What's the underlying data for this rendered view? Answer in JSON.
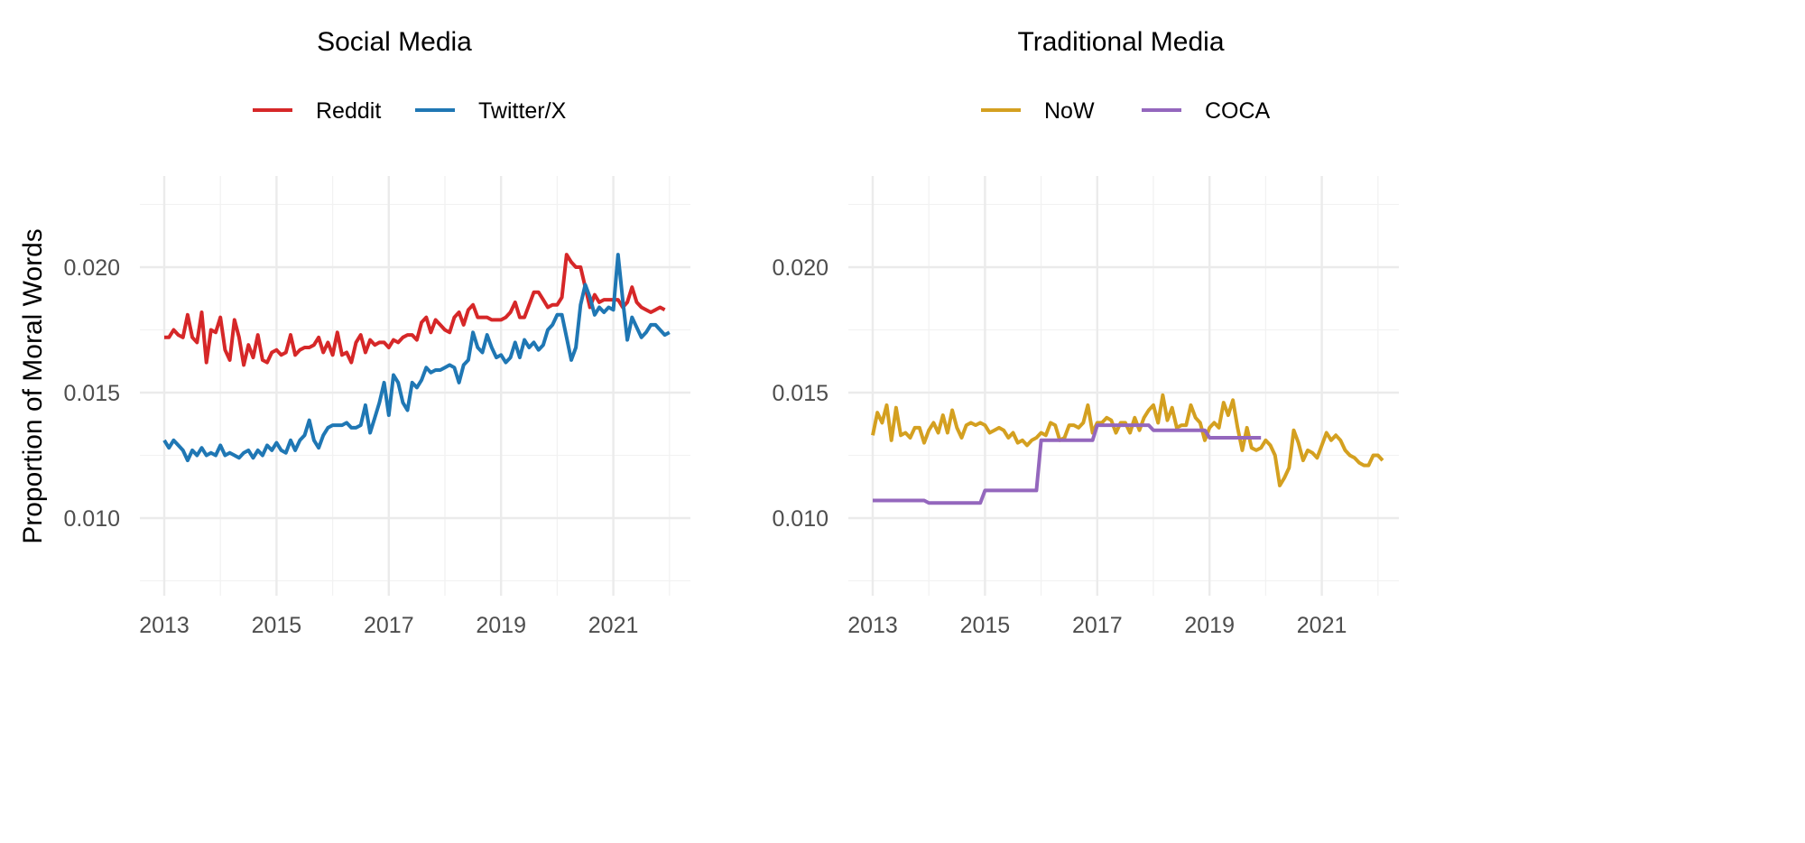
{
  "chart_data": [
    {
      "type": "line",
      "title": "Social Media",
      "xlabel": "",
      "ylabel": "Proportion of Moral Words",
      "xlim": [
        2012.57,
        2022.37
      ],
      "ylim": [
        0.0069,
        0.0236
      ],
      "x_ticks": [
        "2013",
        "2015",
        "2017",
        "2019",
        "2021"
      ],
      "y_ticks": [
        "0.010",
        "0.015",
        "0.020"
      ],
      "grid": true,
      "legend_position": "top",
      "x_start": 2013,
      "x_step_months": 1,
      "series": [
        {
          "name": "Reddit",
          "color": "#d62728",
          "values": [
            0.0172,
            0.0172,
            0.0175,
            0.0173,
            0.0172,
            0.0181,
            0.0172,
            0.017,
            0.0182,
            0.0162,
            0.0175,
            0.0174,
            0.018,
            0.0167,
            0.0163,
            0.0179,
            0.0172,
            0.0161,
            0.0169,
            0.0164,
            0.0173,
            0.0163,
            0.0162,
            0.0166,
            0.0167,
            0.0165,
            0.0166,
            0.0173,
            0.0165,
            0.0167,
            0.0168,
            0.0168,
            0.0169,
            0.0172,
            0.0166,
            0.017,
            0.0165,
            0.0174,
            0.0165,
            0.0166,
            0.0162,
            0.017,
            0.0173,
            0.0166,
            0.0171,
            0.0169,
            0.017,
            0.017,
            0.0168,
            0.0171,
            0.017,
            0.0172,
            0.0173,
            0.0173,
            0.0171,
            0.0178,
            0.018,
            0.0174,
            0.0179,
            0.0177,
            0.0175,
            0.0174,
            0.018,
            0.0182,
            0.0177,
            0.0183,
            0.0185,
            0.018,
            0.018,
            0.018,
            0.0179,
            0.0179,
            0.0179,
            0.018,
            0.0182,
            0.0186,
            0.018,
            0.018,
            0.0185,
            0.019,
            0.019,
            0.0187,
            0.0184,
            0.0185,
            0.0185,
            0.0188,
            0.0205,
            0.0202,
            0.02,
            0.02,
            0.0192,
            0.0184,
            0.0189,
            0.0186,
            0.0187,
            0.0187,
            0.0187,
            0.0187,
            0.0184,
            0.0186,
            0.0192,
            0.0186,
            0.0184,
            0.0183,
            0.0182,
            0.0183,
            0.0184,
            0.0183
          ]
        },
        {
          "name": "Twitter/X",
          "color": "#1f77b4",
          "values": [
            0.0131,
            0.0128,
            0.0131,
            0.0129,
            0.0127,
            0.0123,
            0.0127,
            0.0125,
            0.0128,
            0.0125,
            0.0126,
            0.0125,
            0.0129,
            0.0125,
            0.0126,
            0.0125,
            0.0124,
            0.0126,
            0.0127,
            0.0124,
            0.0127,
            0.0125,
            0.0129,
            0.0127,
            0.013,
            0.0127,
            0.0126,
            0.0131,
            0.0127,
            0.0131,
            0.0133,
            0.0139,
            0.0131,
            0.0128,
            0.0133,
            0.0136,
            0.0137,
            0.0137,
            0.0137,
            0.0138,
            0.0136,
            0.0136,
            0.0137,
            0.0145,
            0.0134,
            0.014,
            0.0146,
            0.0154,
            0.0141,
            0.0157,
            0.0154,
            0.0146,
            0.0143,
            0.0154,
            0.0152,
            0.0155,
            0.016,
            0.0158,
            0.0159,
            0.0159,
            0.016,
            0.0161,
            0.016,
            0.0154,
            0.0161,
            0.0163,
            0.0174,
            0.0168,
            0.0166,
            0.0173,
            0.0168,
            0.0164,
            0.0165,
            0.0162,
            0.0164,
            0.017,
            0.0164,
            0.0171,
            0.0168,
            0.017,
            0.0167,
            0.0169,
            0.0175,
            0.0177,
            0.0181,
            0.0181,
            0.0172,
            0.0163,
            0.0168,
            0.0185,
            0.0193,
            0.0188,
            0.0181,
            0.0184,
            0.0182,
            0.0184,
            0.0183,
            0.0205,
            0.0187,
            0.0171,
            0.018,
            0.0176,
            0.0172,
            0.0174,
            0.0177,
            0.0177,
            0.0175,
            0.0173,
            0.0174
          ]
        }
      ]
    },
    {
      "type": "line",
      "title": "Traditional Media",
      "xlabel": "",
      "ylabel": "",
      "xlim": [
        2012.57,
        2022.37
      ],
      "ylim": [
        0.0069,
        0.0236
      ],
      "x_ticks": [
        "2013",
        "2015",
        "2017",
        "2019",
        "2021"
      ],
      "y_ticks": [
        "0.010",
        "0.015",
        "0.020"
      ],
      "grid": true,
      "legend_position": "top",
      "x_start": 2013,
      "x_step_months": 1,
      "series": [
        {
          "name": "NoW",
          "color": "#d4a020",
          "values": [
            0.0133,
            0.0142,
            0.0138,
            0.0145,
            0.0131,
            0.0144,
            0.0133,
            0.0134,
            0.0132,
            0.0136,
            0.0136,
            0.013,
            0.0135,
            0.0138,
            0.0134,
            0.0141,
            0.0134,
            0.0143,
            0.0136,
            0.0132,
            0.0137,
            0.0138,
            0.0137,
            0.0138,
            0.0137,
            0.0134,
            0.0135,
            0.0136,
            0.0135,
            0.0132,
            0.0134,
            0.013,
            0.0131,
            0.0129,
            0.0131,
            0.0132,
            0.0134,
            0.0133,
            0.0138,
            0.0137,
            0.0131,
            0.0132,
            0.0137,
            0.0137,
            0.0136,
            0.0138,
            0.0145,
            0.0134,
            0.0138,
            0.0138,
            0.014,
            0.0139,
            0.0134,
            0.0138,
            0.0138,
            0.0134,
            0.014,
            0.0135,
            0.014,
            0.0143,
            0.0145,
            0.0138,
            0.0149,
            0.0139,
            0.0144,
            0.0136,
            0.0137,
            0.0137,
            0.0145,
            0.014,
            0.0138,
            0.0131,
            0.0136,
            0.0138,
            0.0136,
            0.0146,
            0.0141,
            0.0147,
            0.0136,
            0.0127,
            0.0136,
            0.0128,
            0.0127,
            0.0128,
            0.0131,
            0.0129,
            0.0125,
            0.0113,
            0.0116,
            0.012,
            0.0135,
            0.013,
            0.0123,
            0.0127,
            0.0126,
            0.0124,
            0.0129,
            0.0134,
            0.0131,
            0.0133,
            0.0131,
            0.0127,
            0.0125,
            0.0124,
            0.0122,
            0.0121,
            0.0121,
            0.0125,
            0.0125,
            0.0123
          ]
        },
        {
          "name": "COCA",
          "color": "#9467bd",
          "annual": true,
          "years": [
            2013,
            2014,
            2015,
            2016,
            2017,
            2018,
            2019
          ],
          "values": [
            0.0107,
            0.0106,
            0.0111,
            0.0131,
            0.0137,
            0.0135,
            0.0132
          ]
        }
      ]
    }
  ]
}
